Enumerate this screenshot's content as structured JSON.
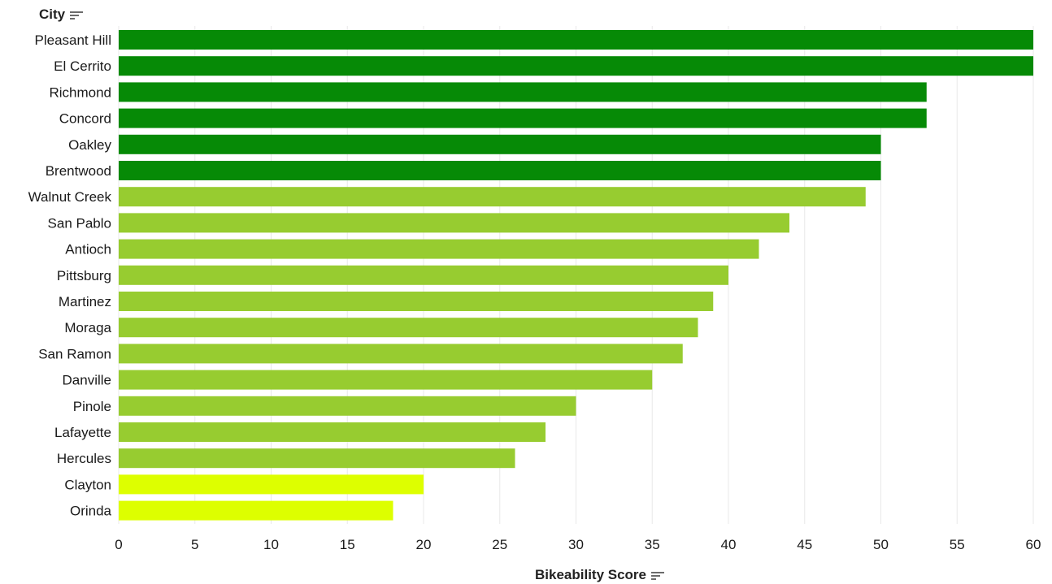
{
  "colors": {
    "high": "#068a06",
    "mid": "#97cc30",
    "low": "#ddff00",
    "grid": "#e8e8e8",
    "text": "#1a1a1a"
  },
  "header": {
    "row_label": "City",
    "row_sort_icon": "sort-descending-icon"
  },
  "footer": {
    "axis_label": "Bikeability Score",
    "axis_sort_icon": "sort-descending-icon"
  },
  "chart_data": {
    "type": "bar",
    "orientation": "horizontal",
    "title": "",
    "ylabel": "City",
    "xlabel": "Bikeability Score",
    "xlim": [
      0,
      60
    ],
    "xticks": [
      0,
      5,
      10,
      15,
      20,
      25,
      30,
      35,
      40,
      45,
      50,
      55,
      60
    ],
    "grid": true,
    "categories": [
      "Pleasant Hill",
      "El Cerrito",
      "Richmond",
      "Concord",
      "Oakley",
      "Brentwood",
      "Walnut Creek",
      "San Pablo",
      "Antioch",
      "Pittsburg",
      "Martinez",
      "Moraga",
      "San Ramon",
      "Danville",
      "Pinole",
      "Lafayette",
      "Hercules",
      "Clayton",
      "Orinda"
    ],
    "values": [
      60,
      60,
      53,
      53,
      50,
      50,
      49,
      44,
      42,
      40,
      39,
      38,
      37,
      35,
      30,
      28,
      26,
      20,
      18
    ],
    "color_groups": [
      "high",
      "high",
      "high",
      "high",
      "high",
      "high",
      "mid",
      "mid",
      "mid",
      "mid",
      "mid",
      "mid",
      "mid",
      "mid",
      "mid",
      "mid",
      "mid",
      "low",
      "low"
    ]
  }
}
